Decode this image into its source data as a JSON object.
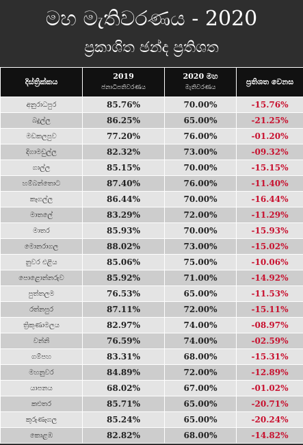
{
  "header": {
    "title": "මහ මැතිවරණය - 2020",
    "subtitle": "ප්‍රකාශිත ඡන්ද ප්‍රතිශත"
  },
  "table": {
    "headers": [
      [
        "දිස්ත්‍රික්කය"
      ],
      [
        "2019",
        "ජනාධිපතිවරණය"
      ],
      [
        "2020 මහ",
        "මැතිවරණය"
      ],
      [
        "ප්‍රතිශත වෙනස"
      ]
    ],
    "rows": [
      [
        "අනුරාධපුර",
        "85.76%",
        "70.00%",
        "-15.76%"
      ],
      [
        "බදුල්ල",
        "86.25%",
        "65.00%",
        "-21.25%"
      ],
      [
        "මඩකලපුව",
        "77.20%",
        "76.00%",
        "-01.20%"
      ],
      [
        "දිගාමඩුල්ල",
        "82.32%",
        "73.00%",
        "-09.32%"
      ],
      [
        "ගාල්ල",
        "85.15%",
        "70.00%",
        "-15.15%"
      ],
      [
        "හම්බන්තොට",
        "87.40%",
        "76.00%",
        "-11.40%"
      ],
      [
        "කෑගල්ල",
        "86.44%",
        "70.00%",
        "-16.44%"
      ],
      [
        "මාතලේ",
        "83.29%",
        "72.00%",
        "-11.29%"
      ],
      [
        "මාතර",
        "85.93%",
        "70.00%",
        "-15.93%"
      ],
      [
        "මොනරාගල",
        "88.02%",
        "73.00%",
        "-15.02%"
      ],
      [
        "නුවර එළිය",
        "85.06%",
        "75.00%",
        "-10.06%"
      ],
      [
        "පොළොන්නරුව",
        "85.92%",
        "71.00%",
        "-14.92%"
      ],
      [
        "පුත්තලම",
        "76.53%",
        "65.00%",
        "-11.53%"
      ],
      [
        "රත්නපුර",
        "87.11%",
        "72.00%",
        "-15.11%"
      ],
      [
        "ත්‍රිකුණාමලය",
        "82.97%",
        "74.00%",
        "-08.97%"
      ],
      [
        "වන්නි",
        "76.59%",
        "74.00%",
        "-02.59%"
      ],
      [
        "ගම්පහ",
        "83.31%",
        "68.00%",
        "-15.31%"
      ],
      [
        "මහනුවර",
        "84.89%",
        "72.00%",
        "-12.89%"
      ],
      [
        "යාපනය",
        "68.02%",
        "67.00%",
        "-01.02%"
      ],
      [
        "කළුතර",
        "85.71%",
        "65.00%",
        "-20.71%"
      ],
      [
        "කුරුණෑගල",
        "85.24%",
        "65.00%",
        "-20.24%"
      ],
      [
        "කොළඹ",
        "82.82%",
        "68.00%",
        "-14.82%"
      ]
    ]
  }
}
